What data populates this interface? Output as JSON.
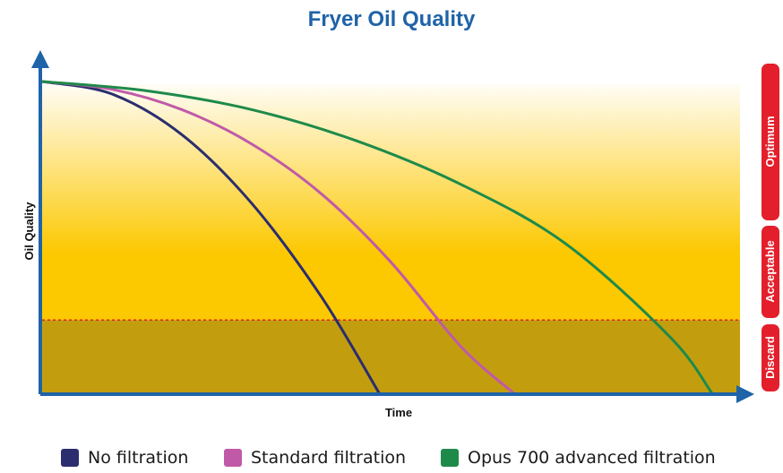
{
  "chart_data": {
    "type": "line",
    "title": "Fryer Oil Quality",
    "xlabel": "Time",
    "ylabel": "Oil Quality",
    "series": [
      {
        "name": "No filtration",
        "color": "#2b2d6e",
        "x": [
          0.0,
          0.1,
          0.2,
          0.3,
          0.4,
          0.483
        ],
        "y": [
          1.0,
          0.96,
          0.83,
          0.61,
          0.31,
          0.0
        ]
      },
      {
        "name": "Standard filtration",
        "color": "#c05aa8",
        "x": [
          0.0,
          0.1,
          0.2,
          0.3,
          0.4,
          0.5,
          0.6,
          0.676
        ],
        "y": [
          1.0,
          0.975,
          0.91,
          0.8,
          0.64,
          0.42,
          0.15,
          0.0
        ]
      },
      {
        "name": "Opus 700 advanced filtration",
        "color": "#1e8a4a",
        "x": [
          0.0,
          0.15,
          0.3,
          0.45,
          0.6,
          0.75,
          0.9,
          0.96
        ],
        "y": [
          1.0,
          0.97,
          0.91,
          0.81,
          0.67,
          0.48,
          0.18,
          0.0
        ]
      }
    ],
    "zones": [
      {
        "label": "Optimum",
        "color": "#e31f2b"
      },
      {
        "label": "Acceptable",
        "color": "#e31f2b"
      },
      {
        "label": "Discard",
        "color": "#e31f2b"
      }
    ],
    "discard_threshold": 0.235,
    "xlim": [
      0,
      1
    ],
    "ylim": [
      0,
      1
    ],
    "grid": false,
    "legend_placement": "bottom"
  },
  "colors": {
    "title": "#1f63a8",
    "axis": "#1f63a8",
    "gradient_top": "#fffdf6",
    "gradient_bottom": "#fcc800",
    "discard_fill": "#c29e0f",
    "threshold_line": "#e31f2b"
  }
}
